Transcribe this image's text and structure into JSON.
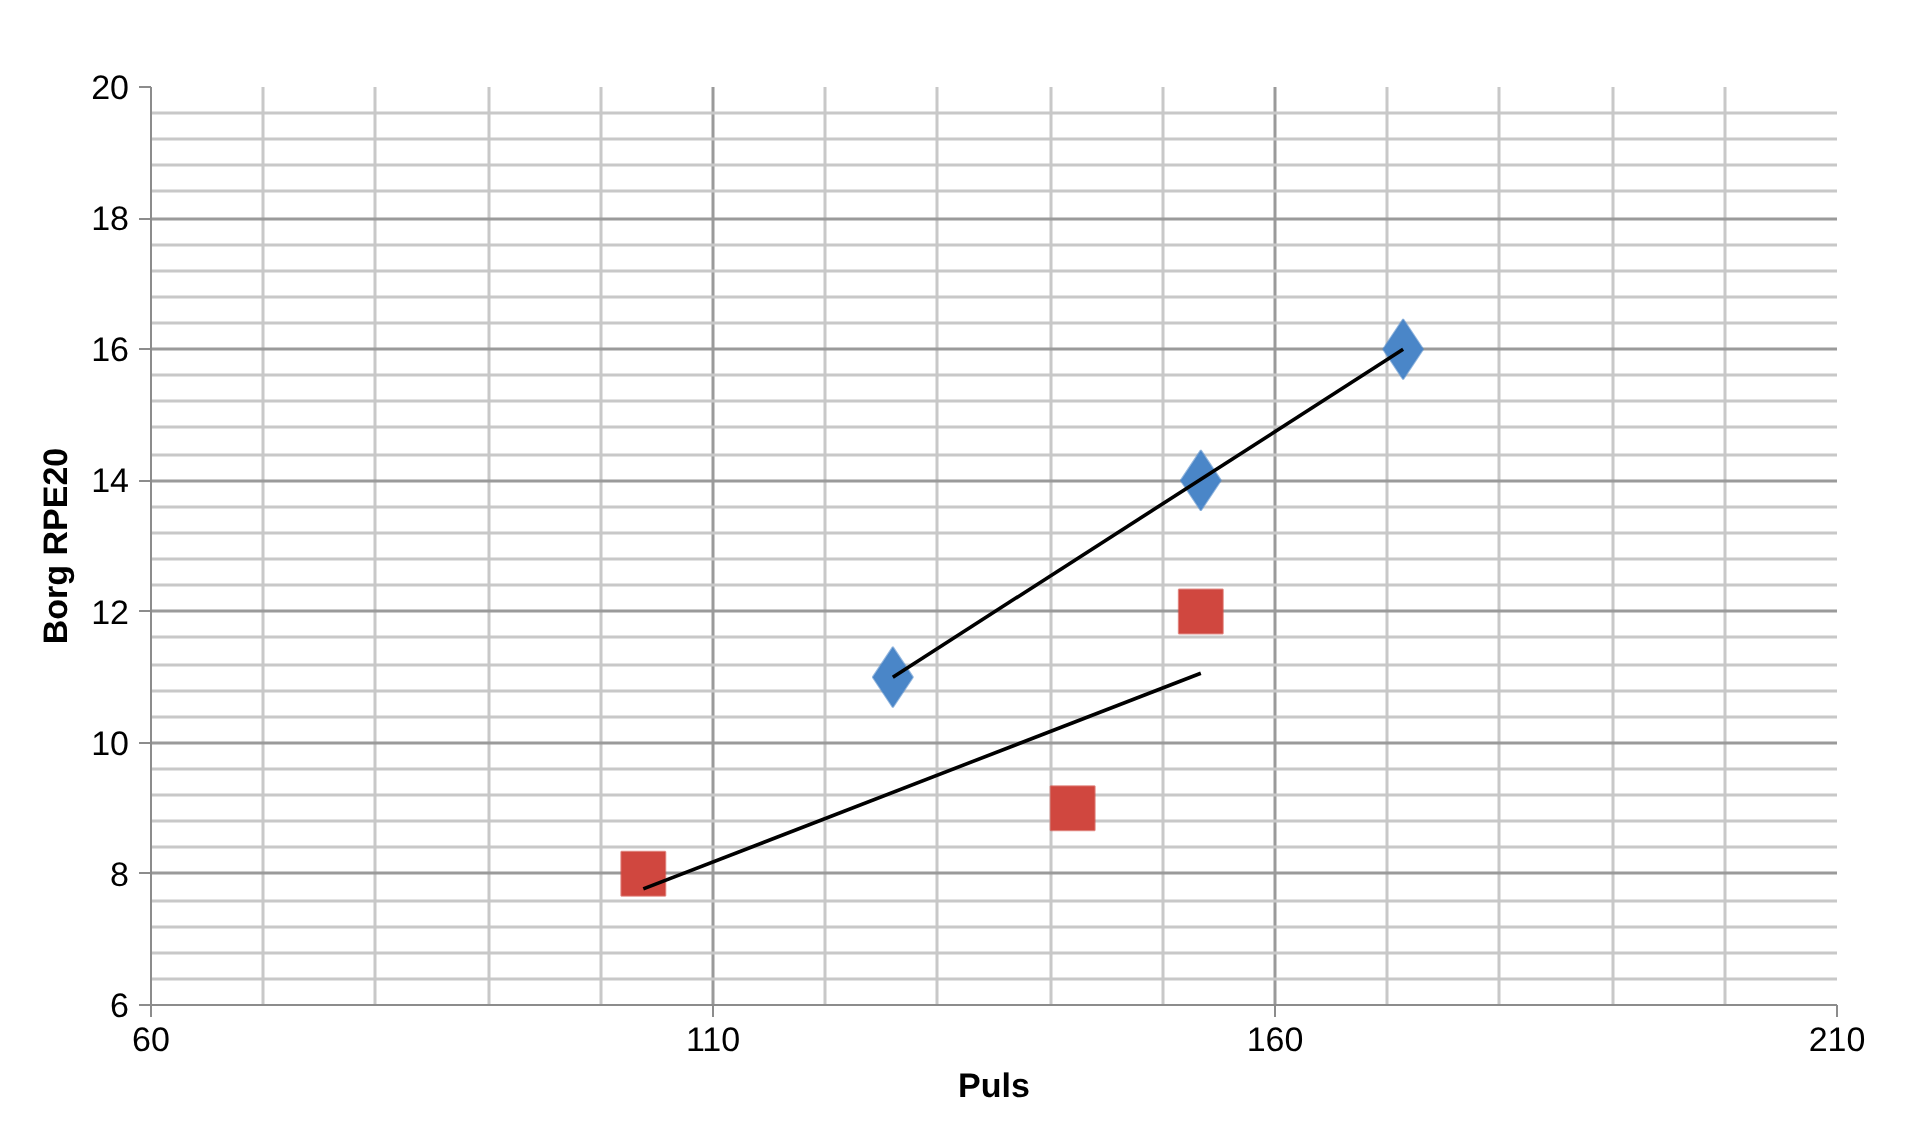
{
  "chart_data": {
    "type": "scatter",
    "xlabel": "Puls",
    "ylabel": "Borg RPE20",
    "xlim": [
      60,
      210
    ],
    "xticks": [
      60,
      110,
      160,
      210
    ],
    "ylim": [
      6,
      20
    ],
    "yticks": [
      6,
      8,
      10,
      12,
      14,
      16,
      18,
      20
    ],
    "grid": true,
    "series": [
      {
        "marker": "diamond",
        "color": "#4a86c8",
        "x": [
          126,
          153.4,
          171.4
        ],
        "values": [
          11,
          14,
          16
        ]
      },
      {
        "marker": "square",
        "color": "#d0473f",
        "x": [
          103.8,
          142,
          153.4
        ],
        "values": [
          8,
          9,
          12
        ]
      },
      {
        "type": "line",
        "color": "#000000",
        "x": [
          126,
          171.4
        ],
        "values": [
          11.0,
          16.0
        ]
      },
      {
        "type": "line",
        "color": "#000000",
        "x": [
          103.8,
          153.4
        ],
        "values": [
          7.77,
          11.06
        ]
      }
    ]
  }
}
